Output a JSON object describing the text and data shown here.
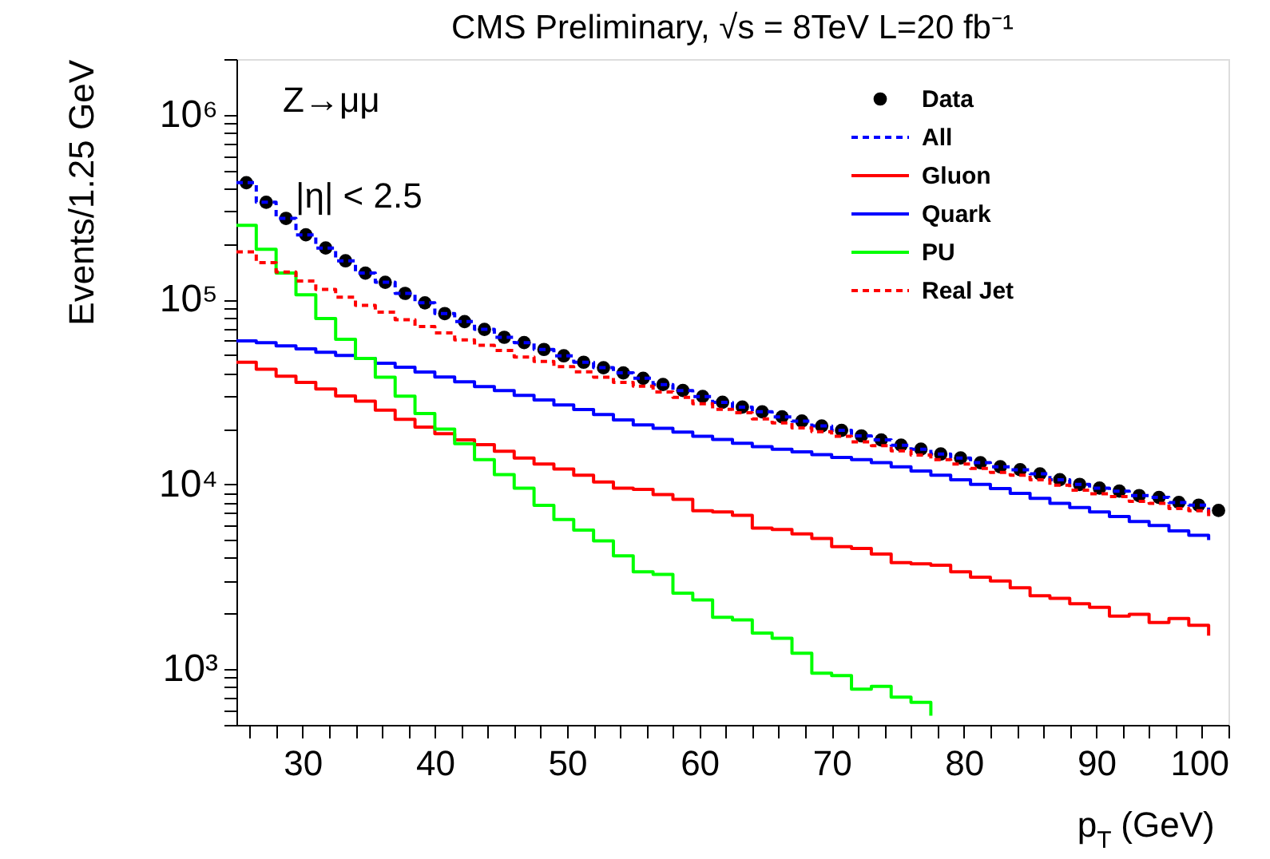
{
  "chart_data": {
    "type": "step",
    "title": "CMS Preliminary, √s = 8TeV L=20 fb⁻¹",
    "xlabel": "p$_{T}$ (GeV)",
    "ylabel": "Events/1.25 GeV",
    "annotations": [
      "Z→μμ",
      "|η|  < 2.5"
    ],
    "x": [
      25,
      26.5,
      28,
      29.5,
      31,
      32.5,
      34,
      35.5,
      37,
      38.5,
      40,
      41.5,
      43,
      44.5,
      46,
      47.5,
      49,
      50.5,
      52,
      53.5,
      55,
      56.5,
      58,
      59.5,
      61,
      62.5,
      64,
      65.5,
      67,
      68.5,
      70,
      71.5,
      73,
      74.5,
      76,
      77.5,
      79,
      80.5,
      82,
      83.5,
      85,
      86.5,
      88,
      89.5,
      91,
      92.5,
      94,
      95.5,
      97,
      98.5
    ],
    "series": [
      {
        "name": "Data",
        "type": "scatter",
        "marker": "circle",
        "color": "#000000",
        "x": [
          25.75,
          27.25,
          28.75,
          30.25,
          31.75,
          33.25,
          34.75,
          36.25,
          37.75,
          39.25,
          40.75,
          42.25,
          43.75,
          45.25,
          46.75,
          48.25,
          49.75,
          51.25,
          52.75,
          54.25,
          55.75,
          57.25,
          58.75,
          60.25,
          61.75,
          63.25,
          64.75,
          66.25,
          67.75,
          69.25,
          70.75,
          72.25,
          73.75,
          75.25,
          76.75,
          78.25,
          79.75,
          81.25,
          82.75,
          84.25,
          85.75,
          87.25,
          88.75,
          90.25,
          91.75,
          93.25,
          94.75,
          96.25,
          97.75,
          99.25
        ],
        "values": [
          429000,
          336000,
          275000,
          224000,
          190000,
          162000,
          139000,
          124000,
          108000,
          96000,
          84000,
          76000,
          69000,
          62500,
          58500,
          53700,
          49600,
          45800,
          42800,
          40100,
          37500,
          34700,
          32200,
          29900,
          27800,
          26200,
          24700,
          23200,
          22000,
          20700,
          19600,
          18300,
          17400,
          16300,
          15500,
          14600,
          13900,
          13100,
          12450,
          12000,
          11400,
          10600,
          10000,
          9550,
          9200,
          8700,
          8500,
          7980,
          7720,
          7230
        ]
      },
      {
        "name": "All",
        "color": "#0000ff",
        "line_style": "dashed",
        "values": [
          429000,
          336000,
          275000,
          224000,
          190000,
          162000,
          139000,
          124000,
          108000,
          96000,
          84000,
          76000,
          69000,
          62500,
          58500,
          53700,
          49600,
          45800,
          42800,
          40100,
          37500,
          34700,
          32200,
          29900,
          27800,
          26200,
          24700,
          23200,
          22000,
          20700,
          19600,
          18300,
          17400,
          16300,
          15500,
          14600,
          13900,
          13100,
          12450,
          12000,
          11400,
          10600,
          10000,
          9550,
          9200,
          8700,
          8500,
          7980,
          7720,
          7000
        ]
      },
      {
        "name": "Gluon",
        "color": "#ff0000",
        "values": [
          45800,
          42000,
          38500,
          35600,
          32800,
          30100,
          28200,
          25200,
          22500,
          20400,
          18800,
          17400,
          16400,
          15100,
          13900,
          12900,
          12100,
          11200,
          10300,
          9550,
          9400,
          8800,
          8300,
          7200,
          7100,
          6800,
          5800,
          5700,
          5400,
          5100,
          4600,
          4500,
          4200,
          3770,
          3720,
          3650,
          3370,
          3150,
          3000,
          2760,
          2500,
          2420,
          2260,
          2160,
          1940,
          1980,
          1790,
          1880,
          1730,
          1520
        ]
      },
      {
        "name": "Quark",
        "color": "#0000ff",
        "values": [
          59700,
          58500,
          56200,
          54100,
          51900,
          49900,
          48000,
          45200,
          43000,
          40500,
          38100,
          35900,
          33800,
          32200,
          30300,
          28600,
          26900,
          25400,
          23900,
          22300,
          21000,
          20100,
          19200,
          18200,
          17500,
          16700,
          16000,
          15500,
          15000,
          14500,
          14000,
          13600,
          13100,
          12450,
          11800,
          11200,
          10600,
          10000,
          9500,
          8950,
          8400,
          7900,
          7500,
          7100,
          6700,
          6300,
          6000,
          5600,
          5300,
          5000
        ]
      },
      {
        "name": "PU",
        "color": "#00ff00",
        "values": [
          252000,
          187000,
          139000,
          106000,
          79000,
          61000,
          48000,
          38000,
          30000,
          24200,
          19900,
          16600,
          13600,
          11300,
          9550,
          7700,
          6450,
          5660,
          4950,
          4110,
          3370,
          3260,
          2580,
          2370,
          1910,
          1850,
          1570,
          1470,
          1220,
          953,
          923,
          781,
          807,
          707,
          662,
          561,
          null,
          null,
          null,
          null,
          null,
          null,
          null,
          null,
          null,
          null,
          null,
          null,
          null,
          null
        ]
      },
      {
        "name": "Real Jet",
        "color": "#ff0000",
        "line_style": "dashed",
        "values": [
          181000,
          158500,
          141000,
          126000,
          113500,
          103000,
          93000,
          85500,
          77800,
          71400,
          66000,
          60500,
          56600,
          53000,
          48900,
          46300,
          43400,
          40600,
          38000,
          35600,
          34000,
          31600,
          29600,
          27300,
          25500,
          24400,
          22600,
          21500,
          20200,
          19300,
          18200,
          17000,
          16200,
          15200,
          14400,
          13600,
          12900,
          12200,
          11600,
          11200,
          10600,
          9900,
          9300,
          8900,
          8600,
          8100,
          7900,
          7400,
          7200,
          6700
        ]
      }
    ],
    "xlim": [
      25,
      100
    ],
    "xticks": [
      {
        "value": 26,
        "label": null
      },
      {
        "value": 28,
        "label": null
      },
      30,
      {
        "value": 32,
        "label": null
      },
      {
        "value": 34,
        "label": null
      },
      {
        "value": 36,
        "label": null
      },
      {
        "value": 38,
        "label": null
      },
      40,
      {
        "value": 42,
        "label": null
      },
      {
        "value": 44,
        "label": null
      },
      {
        "value": 46,
        "label": null
      },
      {
        "value": 48,
        "label": null
      },
      50,
      {
        "value": 52,
        "label": null
      },
      {
        "value": 54,
        "label": null
      },
      {
        "value": 56,
        "label": null
      },
      {
        "value": 58,
        "label": null
      },
      60,
      {
        "value": 62,
        "label": null
      },
      {
        "value": 64,
        "label": null
      },
      {
        "value": 66,
        "label": null
      },
      {
        "value": 68,
        "label": null
      },
      70,
      {
        "value": 72,
        "label": null
      },
      {
        "value": 74,
        "label": null
      },
      {
        "value": 76,
        "label": null
      },
      {
        "value": 78,
        "label": null
      },
      80,
      {
        "value": 82,
        "label": null
      },
      {
        "value": 84,
        "label": null
      },
      {
        "value": 86,
        "label": null
      },
      {
        "value": 88,
        "label": null
      },
      90,
      {
        "value": 92,
        "label": null
      },
      {
        "value": 94,
        "label": null
      },
      {
        "value": 96,
        "label": null
      },
      {
        "value": 98,
        "label": null
      },
      100
    ],
    "ylim": [
      500,
      2000000
    ],
    "log": "y",
    "yticks": [
      {
        "value": 500,
        "label": null
      },
      {
        "value": 600,
        "label": null
      },
      {
        "value": 700,
        "label": null
      },
      {
        "value": 800,
        "label": null
      },
      {
        "value": 900,
        "label": null
      },
      {
        "value": 1000,
        "label": "10³"
      },
      {
        "value": 2000,
        "label": null
      },
      {
        "value": 3000,
        "label": null
      },
      {
        "value": 4000,
        "label": null
      },
      {
        "value": 5000,
        "label": null
      },
      {
        "value": 6000,
        "label": null
      },
      {
        "value": 7000,
        "label": null
      },
      {
        "value": 8000,
        "label": null
      },
      {
        "value": 9000,
        "label": null
      },
      {
        "value": 10000,
        "label": "10⁴"
      },
      {
        "value": 20000,
        "label": null
      },
      {
        "value": 30000,
        "label": null
      },
      {
        "value": 40000,
        "label": null
      },
      {
        "value": 50000,
        "label": null
      },
      {
        "value": 60000,
        "label": null
      },
      {
        "value": 70000,
        "label": null
      },
      {
        "value": 80000,
        "label": null
      },
      {
        "value": 90000,
        "label": null
      },
      {
        "value": 100000,
        "label": "10⁵"
      },
      {
        "value": 200000,
        "label": null
      },
      {
        "value": 300000,
        "label": null
      },
      {
        "value": 400000,
        "label": null
      },
      {
        "value": 500000,
        "label": null
      },
      {
        "value": 600000,
        "label": null
      },
      {
        "value": 700000,
        "label": null
      },
      {
        "value": 800000,
        "label": null
      },
      {
        "value": 900000,
        "label": null
      },
      {
        "value": 1000000,
        "label": "10⁶"
      },
      {
        "value": 2000000,
        "label": null
      }
    ],
    "grid": false,
    "legend": "top right"
  }
}
